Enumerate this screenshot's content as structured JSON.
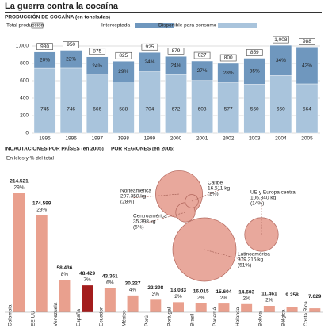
{
  "title": "La guerra contra la cocaína",
  "chart_data": [
    {
      "type": "stacked-bar",
      "title": "PRODUCCIÓN DE COCAÍNA (en toneladas)",
      "total_name": "Total producción",
      "categories": [
        "1995",
        "1996",
        "1997",
        "1998",
        "1999",
        "2000",
        "2001",
        "2002",
        "2003",
        "2004",
        "2005"
      ],
      "series": [
        {
          "name": "Disponible para consumo",
          "color": "#a9c4dc",
          "values": [
            745,
            746,
            666,
            588,
            704,
            672,
            603,
            577,
            560,
            660,
            564
          ]
        },
        {
          "name": "Interceptada",
          "color": "#6f97be",
          "values": [
            185,
            204,
            209,
            237,
            221,
            207,
            224,
            223,
            299,
            348,
            424
          ],
          "value_labels": [
            "20%",
            "22%",
            "24%",
            "29%",
            "24%",
            "24%",
            "27%",
            "28%",
            "35%",
            "34%",
            "42%"
          ]
        }
      ],
      "totals": [
        930,
        950,
        875,
        825,
        925,
        879,
        827,
        800,
        859,
        1008,
        988
      ],
      "total_labels": [
        "930",
        "950",
        "875",
        "825",
        "925",
        "879",
        "827",
        "800",
        "859",
        "1,008",
        "988"
      ],
      "ylim": [
        0,
        1000
      ],
      "yticks": [
        0,
        200,
        400,
        600,
        800,
        {
          "value": 1000,
          "label": "1,000"
        }
      ],
      "grid": true
    },
    {
      "type": "bar",
      "title": "INCAUTACIONES POR PAÍSES (en 2005)",
      "subtitle": "En kilos y % del total",
      "categories": [
        "Colombia",
        "EE UU",
        "Venezuela",
        "España",
        "Ecuador",
        "México",
        "Perú",
        "Portugal",
        "Brasil",
        "Panamá",
        "Holanda",
        "Bolivia",
        "Bélgica",
        "Costa Rica"
      ],
      "values": [
        214521,
        174599,
        58436,
        48429,
        43361,
        30227,
        22398,
        18083,
        16015,
        15604,
        14603,
        11461,
        9258,
        7029
      ],
      "value_labels": [
        "214.521",
        "174.599",
        "58.436",
        "48.429",
        "43.361",
        "30.227",
        "22.398",
        "18.083",
        "16.015",
        "15.604",
        "14.603",
        "11.461",
        "9.258",
        "7.029"
      ],
      "pct_labels": [
        "29%",
        "23%",
        "8%",
        "7%",
        "6%",
        "4%",
        "3%",
        "2%",
        "2%",
        "2%",
        "2%",
        "2%",
        null,
        null
      ],
      "color": "#e9a08e",
      "highlight": "España",
      "highlight_color": "#a31d1d"
    },
    {
      "type": "bubble",
      "title": "POR REGIONES (en 2005)",
      "categories": [
        "Norteamérica",
        "Caribe",
        "Centroamérica",
        "Latinoamérica",
        "UE y Europa central"
      ],
      "values": [
        207350,
        16511,
        35398,
        379215,
        106840
      ],
      "value_labels": [
        "207.350 kg",
        "16.511 kg",
        "35.398 kg",
        "379.215 kg",
        "106.840 kg"
      ],
      "pct_labels": [
        "(28%)",
        "(2%)",
        "(5%)",
        "(51%)",
        "(14%)"
      ],
      "color": "#e8a89c"
    }
  ]
}
